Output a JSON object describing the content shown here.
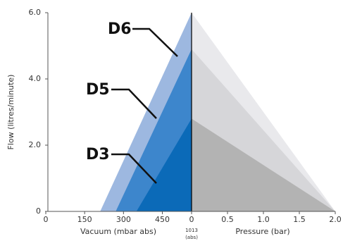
{
  "chart_data": {
    "type": "flow-envelope",
    "ylabel": "Flow (litres/minute)",
    "vacuum_label": "Vacuum (mbar abs)",
    "pressure_label": "Pressure (bar)",
    "center_label": [
      "1013",
      "(abs)"
    ],
    "ylim": [
      0,
      6
    ],
    "yticks": [
      0,
      {
        "value": 2,
        "label": "2.0"
      },
      {
        "value": 4,
        "label": "4.0"
      },
      {
        "value": 6,
        "label": "6.0"
      }
    ],
    "vacuum_lim": [
      0,
      590
    ],
    "vacuum_ticks": [
      0,
      150,
      300,
      450
    ],
    "pressure_lim": [
      0,
      2
    ],
    "pressure_ticks": [
      0,
      0.5,
      {
        "value": 1,
        "label": "1.0"
      },
      1.5,
      {
        "value": 2,
        "label": "2.0"
      }
    ],
    "series": [
      {
        "name": "D6",
        "color": "#9db8e0",
        "pressure_color": "#e9e9ec",
        "vacuum": 210,
        "flow": 6.0,
        "pressure": 2.0
      },
      {
        "name": "D5",
        "color": "#3d86cc",
        "pressure_color": "#d6d6d9",
        "vacuum": 270,
        "flow": 4.9,
        "pressure": 2.0
      },
      {
        "name": "D3",
        "color": "#0b6ab8",
        "pressure_color": "#b3b3b3",
        "vacuum": 350,
        "flow": 2.8,
        "pressure": 2.0
      }
    ]
  }
}
